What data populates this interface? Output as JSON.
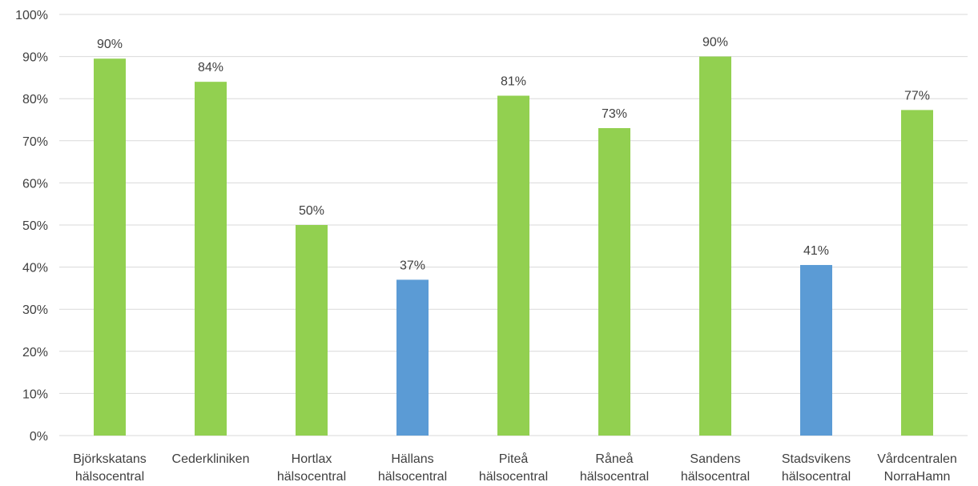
{
  "chart_data": {
    "type": "bar",
    "title": "",
    "xlabel": "",
    "ylabel": "",
    "ylim": [
      0,
      100
    ],
    "y_ticks": [
      "0%",
      "10%",
      "20%",
      "30%",
      "40%",
      "50%",
      "60%",
      "70%",
      "80%",
      "90%",
      "100%"
    ],
    "grid": true,
    "legend": "none",
    "categories": [
      [
        "Björkskatans",
        "hälsocentral"
      ],
      [
        "Cederkliniken"
      ],
      [
        "Hortlax",
        "hälsocentral"
      ],
      [
        "Hällans",
        "hälsocentral"
      ],
      [
        "Piteå",
        "hälsocentral"
      ],
      [
        "Råneå",
        "hälsocentral"
      ],
      [
        "Sandens",
        "hälsocentral"
      ],
      [
        "Stadsvikens",
        "hälsocentral"
      ],
      [
        "Vårdcentralen",
        "NorraHamn"
      ]
    ],
    "values": [
      89.5,
      84,
      50,
      37,
      80.7,
      73,
      90,
      40.5,
      77.3
    ],
    "data_labels": [
      "90%",
      "84%",
      "50%",
      "37%",
      "81%",
      "73%",
      "90%",
      "41%",
      "77%"
    ],
    "bar_colors": [
      "#92d050",
      "#92d050",
      "#92d050",
      "#5b9bd5",
      "#92d050",
      "#92d050",
      "#92d050",
      "#5b9bd5",
      "#92d050"
    ],
    "colors": {
      "axis": "#d9d9d9",
      "text": "#404040"
    }
  }
}
